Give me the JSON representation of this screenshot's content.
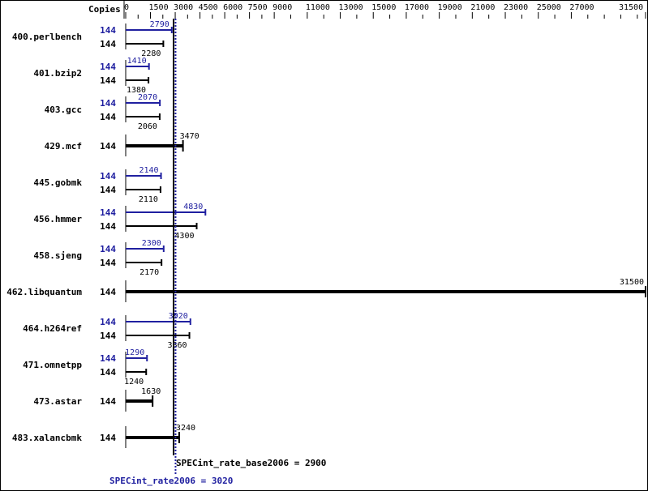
{
  "chart_data": {
    "type": "bar",
    "orientation": "horizontal",
    "copies_header": "Copies",
    "xlim": [
      0,
      31500
    ],
    "x_ticks": [
      0,
      1500,
      3000,
      4500,
      6000,
      7500,
      9000,
      11000,
      13000,
      15000,
      17000,
      19000,
      21000,
      23000,
      25000,
      27000,
      31500
    ],
    "colors": {
      "peak": "#2020a0",
      "base": "#000000"
    },
    "benchmarks": [
      {
        "name": "400.perlbench",
        "peak_copies": "144",
        "peak": 2790,
        "base_copies": "144",
        "base": 2280
      },
      {
        "name": "401.bzip2",
        "peak_copies": "144",
        "peak": 1410,
        "base_copies": "144",
        "base": 1380
      },
      {
        "name": "403.gcc",
        "peak_copies": "144",
        "peak": 2070,
        "base_copies": "144",
        "base": 2060
      },
      {
        "name": "429.mcf",
        "base_copies": "144",
        "base": 3470
      },
      {
        "name": "445.gobmk",
        "peak_copies": "144",
        "peak": 2140,
        "base_copies": "144",
        "base": 2110
      },
      {
        "name": "456.hmmer",
        "peak_copies": "144",
        "peak": 4830,
        "base_copies": "144",
        "base": 4300
      },
      {
        "name": "458.sjeng",
        "peak_copies": "144",
        "peak": 2300,
        "base_copies": "144",
        "base": 2170
      },
      {
        "name": "462.libquantum",
        "base_copies": "144",
        "base": 31500
      },
      {
        "name": "464.h264ref",
        "peak_copies": "144",
        "peak": 3920,
        "base_copies": "144",
        "base": 3860
      },
      {
        "name": "471.omnetpp",
        "peak_copies": "144",
        "peak": 1290,
        "base_copies": "144",
        "base": 1240
      },
      {
        "name": "473.astar",
        "base_copies": "144",
        "base": 1630
      },
      {
        "name": "483.xalancbmk",
        "base_copies": "144",
        "base": 3240
      }
    ],
    "base_mean": {
      "label": "SPECint_rate_base2006 = 2900",
      "value": 2900
    },
    "peak_mean": {
      "label": "SPECint_rate2006 = 3020",
      "value": 3020
    }
  }
}
